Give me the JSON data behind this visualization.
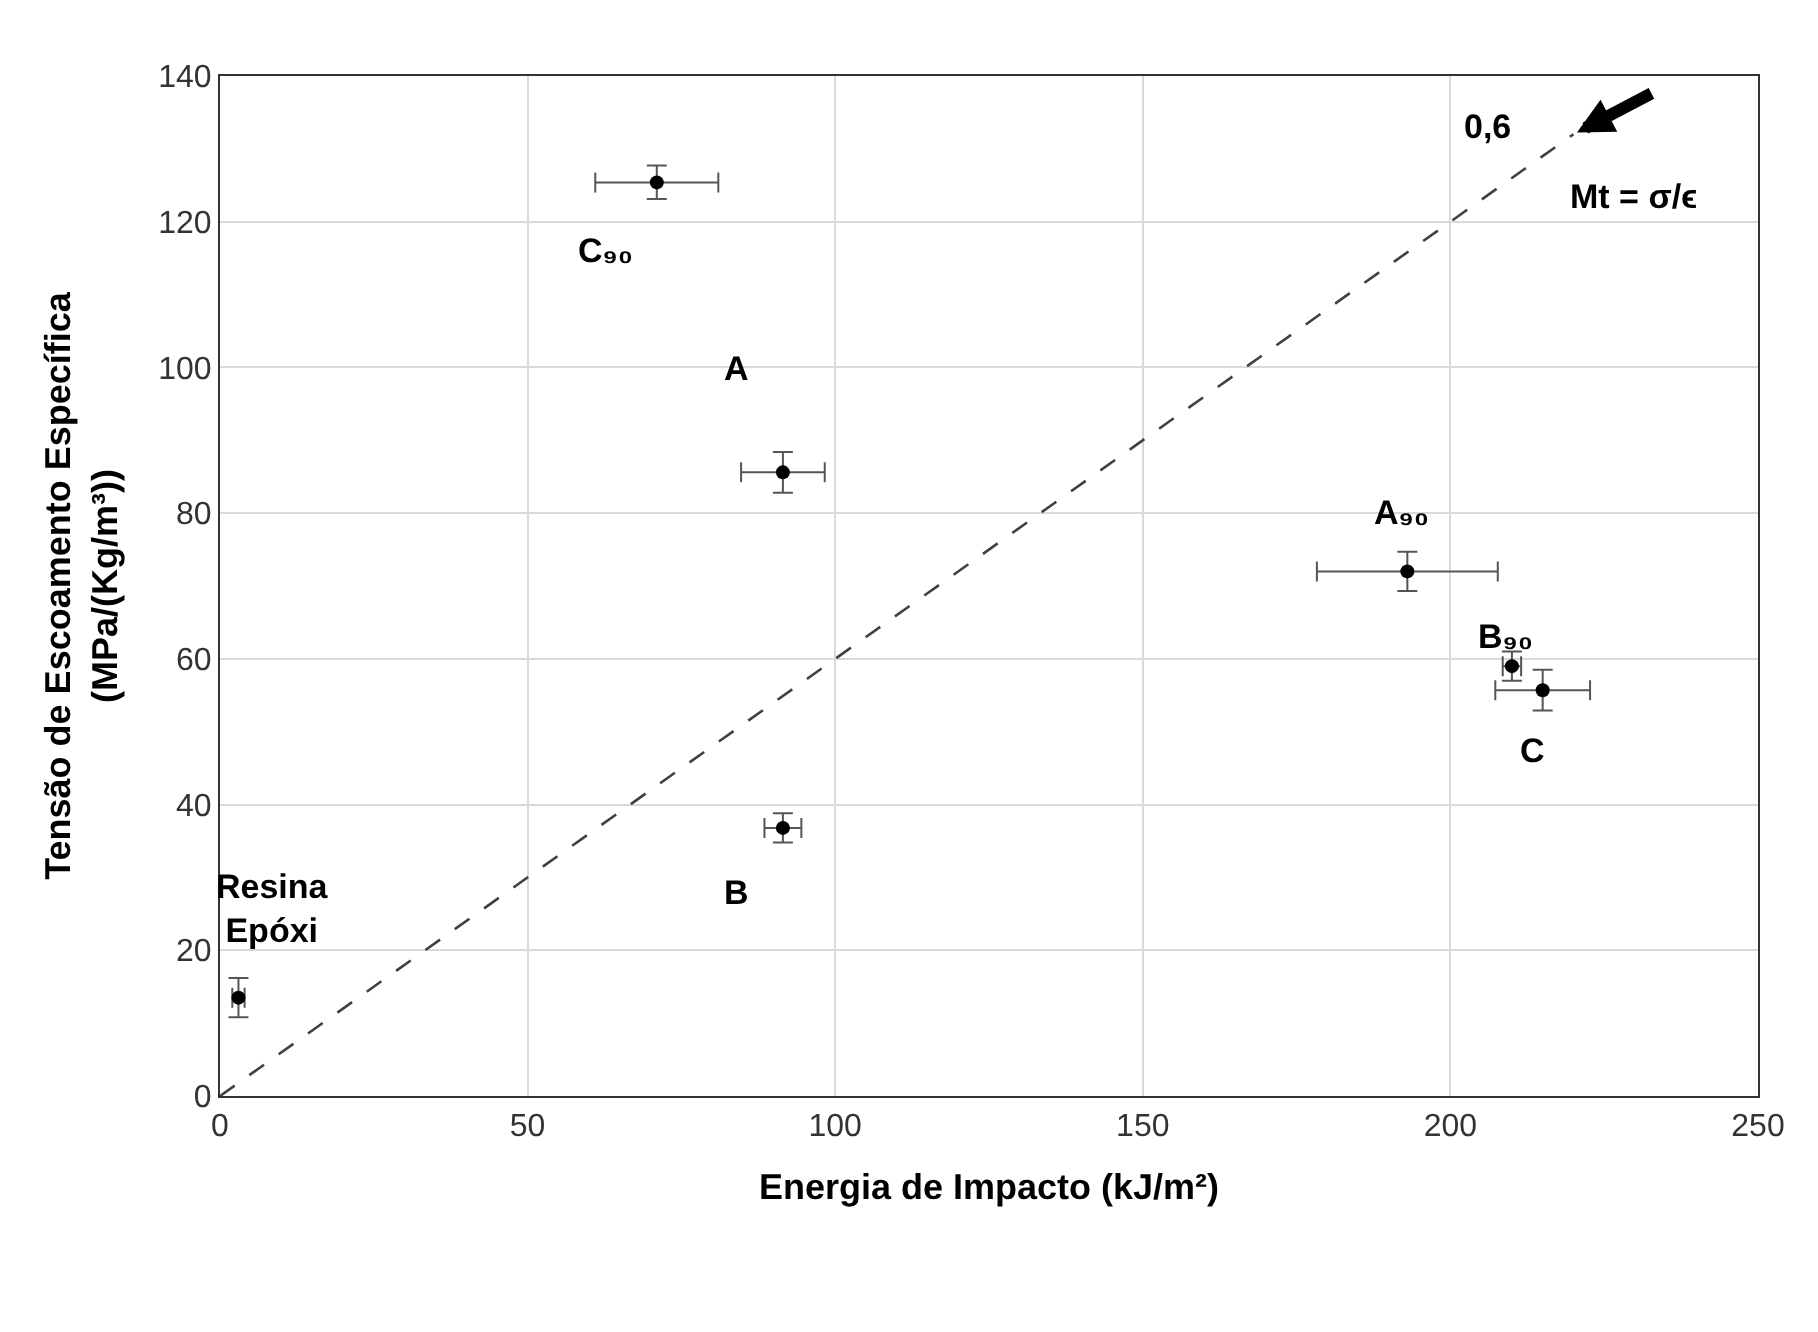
{
  "chart_data": {
    "type": "scatter",
    "xlabel": "Energia de Impacto (kJ/m²)",
    "ylabel": "Tensão de Escoamento Específica\n(MPa/(Kg/m³))",
    "xlim": [
      0,
      250
    ],
    "xticks": [
      0,
      50,
      100,
      150,
      200,
      250
    ],
    "ylim": [
      0,
      140
    ],
    "yticks": [
      0,
      20,
      40,
      60,
      80,
      100,
      120,
      140
    ],
    "grid": true,
    "marker": "circle",
    "series": [
      {
        "color": "#000000",
        "x": [
          3,
          71,
          91.5,
          91.5,
          193,
          210,
          215
        ],
        "values": [
          13.5,
          125.4,
          85.6,
          36.8,
          72,
          59,
          55.7
        ],
        "errors": [
          2.7,
          2.3,
          2.8,
          2,
          2.7,
          2,
          2.8
        ],
        "xerrors": [
          1,
          10,
          6.8,
          3,
          14.7,
          1.5,
          7.7
        ]
      },
      {
        "type": "line",
        "color": "#404040",
        "line_style": "dashed",
        "marker": "none",
        "x": [
          0,
          220
        ],
        "values": [
          0,
          132
        ]
      }
    ],
    "annotations": [
      {
        "text": "Resina\nEpóxi",
        "x": 3,
        "y": 13.5
      },
      {
        "text": "B",
        "x": 91.5,
        "y": 36.8
      },
      {
        "text": "C₉₀",
        "x": 71,
        "y": 125.4
      },
      {
        "text": "A",
        "x": 91.5,
        "y": 85.6
      },
      {
        "text": "A₉₀",
        "x": 193,
        "y": 72
      },
      {
        "text": "B₉₀",
        "x": 210,
        "y": 59
      },
      {
        "text": "C",
        "x": 215,
        "y": 55.7
      },
      {
        "text": "0,6",
        "x": 220,
        "y": 132
      },
      {
        "text": "Mt = σ/ϵ",
        "x": 220,
        "y": 132
      }
    ]
  }
}
